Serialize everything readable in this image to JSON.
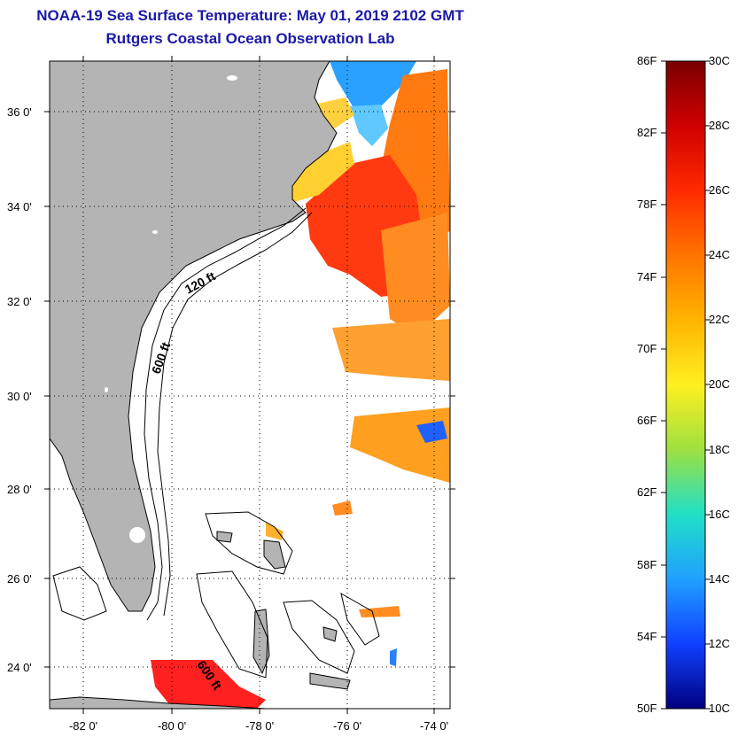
{
  "header": {
    "title": "NOAA-19 Sea Surface Temperature:  May 01, 2019 2102 GMT",
    "subtitle": "Rutgers Coastal Ocean Observation Lab"
  },
  "map": {
    "lat_labels": [
      "36 0'",
      "34 0'",
      "32 0'",
      "30 0'",
      "28 0'",
      "26 0'",
      "24 0'"
    ],
    "lon_labels": [
      "-82 0'",
      "-80 0'",
      "-78 0'",
      "-76 0'",
      "-74 0'"
    ],
    "contour_labels": [
      "120 ft",
      "600 ft",
      "600 ft"
    ],
    "land_color": "#b4b4b4",
    "grid": "dotted"
  },
  "colorbar": {
    "f_labels": [
      "86F",
      "82F",
      "78F",
      "74F",
      "70F",
      "66F",
      "62F",
      "58F",
      "54F",
      "50F"
    ],
    "c_labels": [
      "30C",
      "28C",
      "26C",
      "24C",
      "22C",
      "20C",
      "18C",
      "16C",
      "14C",
      "12C",
      "10C"
    ],
    "colors": [
      "#7a0000",
      "#d00000",
      "#ff3000",
      "#ff7a00",
      "#ffc000",
      "#ffff30",
      "#a0e040",
      "#20e0c0",
      "#20a0ff",
      "#1040ff",
      "#000080"
    ]
  }
}
